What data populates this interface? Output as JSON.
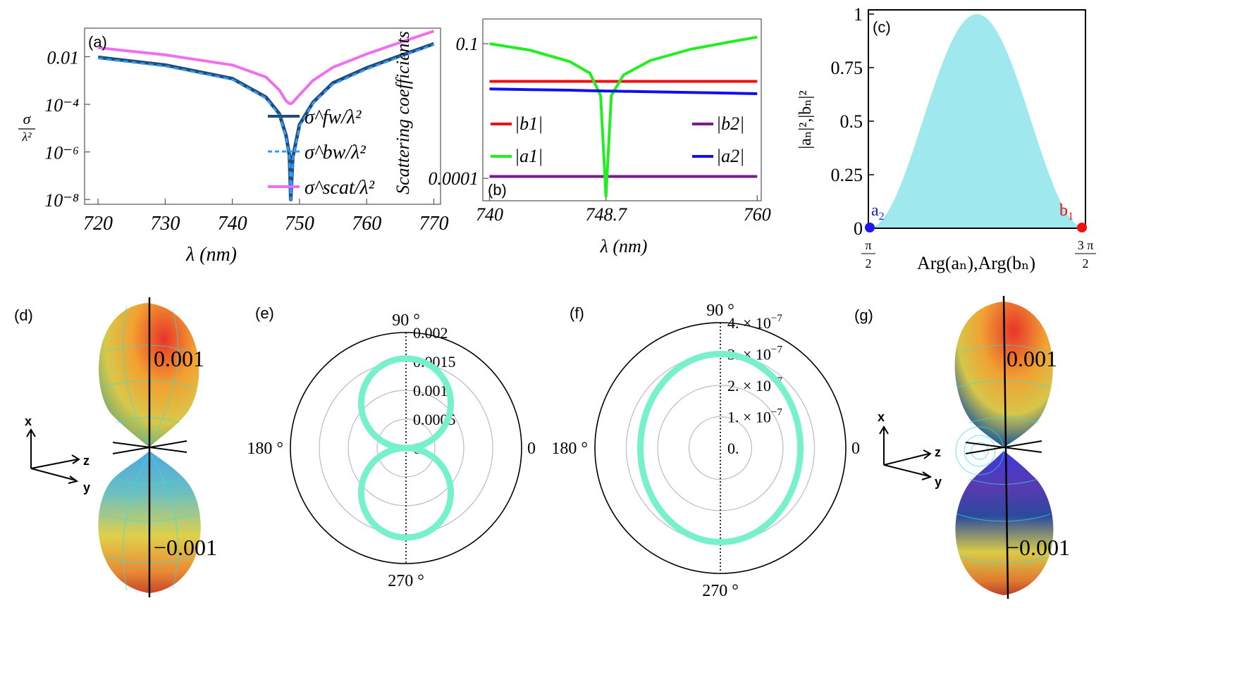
{
  "chart_data": [
    {
      "panel": "(a)",
      "type": "line",
      "xlabel": "λ (nm)",
      "ylabel": "σ/λ²",
      "xticks": [
        "720",
        "730",
        "740",
        "750",
        "760",
        "770"
      ],
      "yticks": [
        "10⁻⁸",
        "10⁻⁶",
        "10⁻⁴",
        "0.01"
      ],
      "xlim": [
        718,
        771
      ],
      "ylim_log10": [
        -8.2,
        -0.8
      ],
      "scale": "log",
      "x": [
        720,
        730,
        740,
        745,
        747,
        748,
        748.5,
        748.7,
        749,
        750,
        752,
        755,
        760,
        765,
        770
      ],
      "series": [
        {
          "name": "σ^fw/λ²",
          "color": "#1f4e79",
          "style": "solid",
          "values": [
            0.0095,
            0.0045,
            0.0012,
            0.0002,
            4e-05,
            5e-06,
            7e-07,
            1e-08,
            6e-07,
            1.4e-05,
            0.00012,
            0.0008,
            0.0034,
            0.011,
            0.035
          ]
        },
        {
          "name": "σ^bw/λ²",
          "color": "#3399ff",
          "style": "dashed",
          "values": [
            0.0086,
            0.004,
            0.0011,
            0.00018,
            3.6e-05,
            4.5e-06,
            6e-07,
            1e-08,
            5e-07,
            1.2e-05,
            0.00011,
            0.0007,
            0.003,
            0.01,
            0.032
          ]
        },
        {
          "name": "σ^scat/λ²",
          "color": "#f06ef0",
          "style": "solid",
          "values": [
            0.024,
            0.012,
            0.0045,
            0.0014,
            0.0004,
            0.00014,
            0.00011,
            0.000105,
            0.00012,
            0.00025,
            0.001,
            0.0036,
            0.013,
            0.04,
            0.12
          ]
        }
      ]
    },
    {
      "panel": "(b)",
      "type": "line",
      "xlabel": "λ (nm)",
      "ylabel": "Scattering coefficients",
      "xticks": [
        "740",
        "748.7",
        "760"
      ],
      "yticks": [
        "0.0001",
        "0.1"
      ],
      "xlim": [
        739.5,
        760.3
      ],
      "ylim_log10": [
        -4.5,
        -0.45
      ],
      "scale": "log",
      "x": [
        740,
        743,
        746,
        747.5,
        748.3,
        748.7,
        749.1,
        750,
        752,
        755,
        758,
        760
      ],
      "series": [
        {
          "name": "|b1|",
          "color": "#ee1111",
          "values": [
            0.0145,
            0.0145,
            0.0145,
            0.0145,
            0.0145,
            0.0145,
            0.0145,
            0.0145,
            0.0145,
            0.0145,
            0.0145,
            0.0145
          ]
        },
        {
          "name": "|b2|",
          "color": "#7a1a8c",
          "values": [
            0.00011,
            0.00011,
            0.00011,
            0.00011,
            0.00011,
            0.00011,
            0.00011,
            0.00011,
            0.00011,
            0.00011,
            0.00011,
            0.00011
          ]
        },
        {
          "name": "|a1|",
          "color": "#22ee22",
          "values": [
            0.1,
            0.072,
            0.04,
            0.022,
            0.007,
            4e-05,
            0.007,
            0.02,
            0.042,
            0.075,
            0.11,
            0.14
          ]
        },
        {
          "name": "|a2|",
          "color": "#1010ee",
          "values": [
            0.0098,
            0.0095,
            0.0092,
            0.009,
            0.0089,
            0.0088,
            0.0088,
            0.0087,
            0.0085,
            0.0082,
            0.0079,
            0.0077
          ]
        }
      ]
    },
    {
      "panel": "(c)",
      "type": "area",
      "xlabel": "Arg(aₙ),Arg(bₙ)",
      "ylabel": "|aₙ|²,|bₙ|²",
      "yticks": [
        "0",
        "0.25",
        "0.5",
        "0.75",
        "1"
      ],
      "xtick_left": {
        "num": "π",
        "den": "2"
      },
      "xtick_right": {
        "num": "3 π",
        "den": "2"
      },
      "curve": "sin²",
      "fill_color": "#9ee8ee",
      "points": [
        {
          "label": "a",
          "sub": "2",
          "color": "#1a1aee",
          "x_frac": 0,
          "y": 0
        },
        {
          "label": "b",
          "sub": "1",
          "color": "#ee1111",
          "x_frac": 1,
          "y": 0
        }
      ]
    },
    {
      "panel": "(e)",
      "type": "polar",
      "angle_labels": [
        "90 °",
        "180 °",
        "270 °",
        "0"
      ],
      "radial_ticks": [
        "0.",
        "0.0005",
        "0.001",
        "0.0015",
        "0.002"
      ],
      "rmax": 0.002,
      "curve": "figure-eight",
      "peak": 0.00155,
      "color": "#77f0cc"
    },
    {
      "panel": "(f)",
      "type": "polar",
      "angle_labels": [
        "90 °",
        "180 °",
        "270 °",
        "0"
      ],
      "radial_ticks": [
        "0.",
        "1. × 10",
        "2. × 10",
        "3. × 10",
        "4. × 10"
      ],
      "radial_exponent": "−7",
      "rmax": 4e-07,
      "curve": "oval",
      "peak": 3e-07,
      "color": "#77f0cc"
    }
  ],
  "panels_3d": [
    {
      "label": "(d)",
      "top_tick": "0.001",
      "bottom_tick": "−0.001",
      "axes": [
        "x",
        "z",
        "y"
      ]
    },
    {
      "label": "(g)",
      "top_tick": "0.001",
      "bottom_tick": "−0.001",
      "axes": [
        "x",
        "z",
        "y"
      ]
    }
  ],
  "labels": {
    "a": "(a)",
    "b": "(b)",
    "c": "(c)",
    "d": "(d)",
    "e": "(e)",
    "f": "(f)",
    "g": "(g)"
  }
}
